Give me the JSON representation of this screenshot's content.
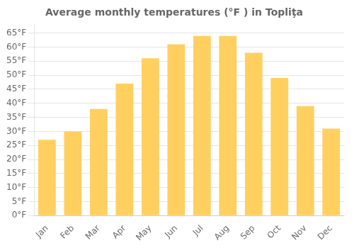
{
  "chart_data": {
    "type": "bar",
    "title": "Average monthly temperatures (°F ) in Topliţa",
    "categories": [
      "Jan",
      "Feb",
      "Mar",
      "Apr",
      "May",
      "Jun",
      "Jul",
      "Aug",
      "Sep",
      "Oct",
      "Nov",
      "Dec"
    ],
    "values": [
      27,
      30,
      38,
      47,
      56,
      61,
      64,
      64,
      58,
      49,
      39,
      31
    ],
    "color": "#FFD060",
    "ylim": [
      0,
      68
    ],
    "yticks": [
      {
        "value": 0,
        "label": "0°F"
      },
      {
        "value": 5,
        "label": "5°F"
      },
      {
        "value": 10,
        "label": "10°F"
      },
      {
        "value": 15,
        "label": "15°F"
      },
      {
        "value": 20,
        "label": "20°F"
      },
      {
        "value": 25,
        "label": "25°F"
      },
      {
        "value": 30,
        "label": "30°F"
      },
      {
        "value": 35,
        "label": "35°F"
      },
      {
        "value": 40,
        "label": "40°F"
      },
      {
        "value": 45,
        "label": "45°F"
      },
      {
        "value": 50,
        "label": "50°F"
      },
      {
        "value": 55,
        "label": "55°F"
      },
      {
        "value": 60,
        "label": "60°F"
      },
      {
        "value": 65,
        "label": "65°F"
      }
    ],
    "grid": true
  }
}
